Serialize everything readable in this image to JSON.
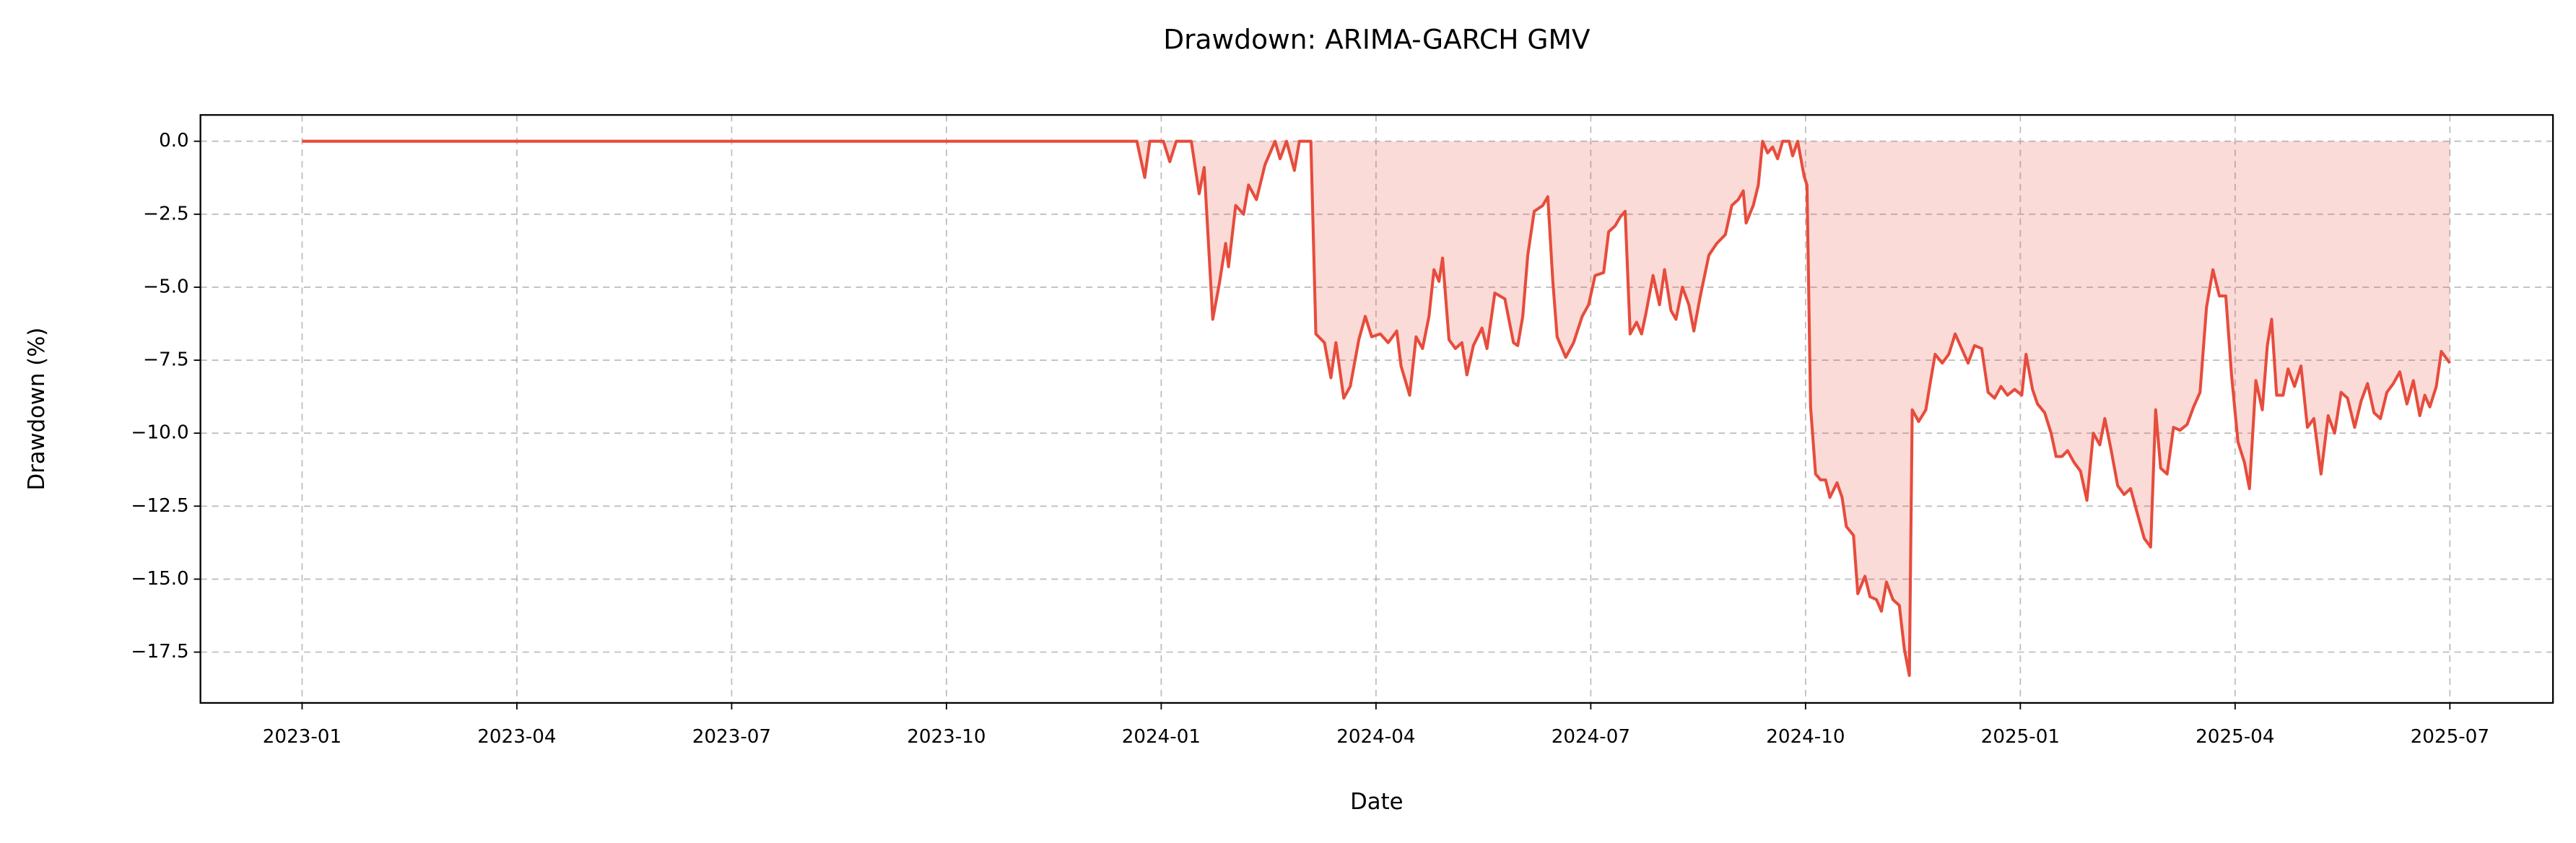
{
  "chart_data": {
    "type": "area",
    "title": "Drawdown: ARIMA-GARCH GMV",
    "x_label": "Date",
    "y_label": "Drawdown (%)",
    "color": "#e74c3c",
    "fill_opacity": 0.2,
    "grid": true,
    "xlim": [
      -1.42,
      31.44
    ],
    "ylim": [
      -19.24,
      0.9
    ],
    "xticks": [
      {
        "value": 0,
        "label": "2023-01"
      },
      {
        "value": 3,
        "label": "2023-04"
      },
      {
        "value": 6,
        "label": "2023-07"
      },
      {
        "value": 9,
        "label": "2023-10"
      },
      {
        "value": 12,
        "label": "2024-01"
      },
      {
        "value": 15,
        "label": "2024-04"
      },
      {
        "value": 18,
        "label": "2024-07"
      },
      {
        "value": 21,
        "label": "2024-10"
      },
      {
        "value": 24,
        "label": "2025-01"
      },
      {
        "value": 27,
        "label": "2025-04"
      },
      {
        "value": 30,
        "label": "2025-07"
      }
    ],
    "yticks": [
      {
        "value": 0,
        "label": "0.0"
      },
      {
        "value": -2.5,
        "label": "−2.5"
      },
      {
        "value": -5,
        "label": "−5.0"
      },
      {
        "value": -7.5,
        "label": "−7.5"
      },
      {
        "value": -10,
        "label": "−10.0"
      },
      {
        "value": -12.5,
        "label": "−12.5"
      },
      {
        "value": -15,
        "label": "−15.0"
      },
      {
        "value": -17.5,
        "label": "−17.5"
      }
    ],
    "x": [
      0,
      11.66,
      11.77,
      11.84,
      12.03,
      12.12,
      12.21,
      12.42,
      12.53,
      12.6,
      12.72,
      12.81,
      12.9,
      12.94,
      13.04,
      13.15,
      13.22,
      13.33,
      13.45,
      13.59,
      13.66,
      13.75,
      13.86,
      13.93,
      14.09,
      14.16,
      14.28,
      14.37,
      14.44,
      14.55,
      14.64,
      14.76,
      14.85,
      14.94,
      15.06,
      15.17,
      15.29,
      15.35,
      15.47,
      15.56,
      15.65,
      15.74,
      15.81,
      15.88,
      15.93,
      16.02,
      16.11,
      16.2,
      16.27,
      16.36,
      16.48,
      16.55,
      16.66,
      16.8,
      16.92,
      16.98,
      17.05,
      17.12,
      17.21,
      17.33,
      17.4,
      17.47,
      17.53,
      17.65,
      17.76,
      17.88,
      17.97,
      18.06,
      18.18,
      18.25,
      18.34,
      18.41,
      18.48,
      18.55,
      18.64,
      18.71,
      18.77,
      18.87,
      18.96,
      19.03,
      19.12,
      19.19,
      19.28,
      19.37,
      19.44,
      19.53,
      19.65,
      19.76,
      19.88,
      19.97,
      20.06,
      20.13,
      20.17,
      20.27,
      20.34,
      20.4,
      20.47,
      20.54,
      20.61,
      20.68,
      20.77,
      20.82,
      20.89,
      20.98,
      21.02,
      21.07,
      21.14,
      21.21,
      21.28,
      21.34,
      21.44,
      21.51,
      21.57,
      21.67,
      21.73,
      21.83,
      21.9,
      21.99,
      22.06,
      22.13,
      22.22,
      22.31,
      22.38,
      22.45,
      22.49,
      22.58,
      22.68,
      22.74,
      22.81,
      22.91,
      23.0,
      23.09,
      23.18,
      23.27,
      23.36,
      23.46,
      23.55,
      23.64,
      23.73,
      23.82,
      23.92,
      24.02,
      24.08,
      24.17,
      24.24,
      24.34,
      24.43,
      24.5,
      24.58,
      24.66,
      24.75,
      24.84,
      24.93,
      25.02,
      25.11,
      25.18,
      25.27,
      25.36,
      25.45,
      25.54,
      25.64,
      25.73,
      25.82,
      25.89,
      25.96,
      26.05,
      26.14,
      26.23,
      26.33,
      26.42,
      26.51,
      26.6,
      26.69,
      26.78,
      26.87,
      26.95,
      27.04,
      27.13,
      27.2,
      27.29,
      27.38,
      27.45,
      27.51,
      27.58,
      27.67,
      27.74,
      27.83,
      27.92,
      28.01,
      28.1,
      28.2,
      28.3,
      28.39,
      28.48,
      28.57,
      28.67,
      28.76,
      28.85,
      28.94,
      29.03,
      29.12,
      29.21,
      29.3,
      29.4,
      29.49,
      29.58,
      29.65,
      29.72,
      29.81,
      29.88,
      30.0
    ],
    "values": [
      0,
      0,
      -1.24,
      0,
      0,
      -0.7,
      0,
      0,
      -1.8,
      -0.9,
      -6.1,
      -4.9,
      -3.5,
      -4.3,
      -2.2,
      -2.5,
      -1.5,
      -2.0,
      -0.8,
      0,
      -0.6,
      0,
      -1.0,
      0,
      0,
      -6.6,
      -6.9,
      -8.1,
      -6.9,
      -8.8,
      -8.4,
      -6.8,
      -6.0,
      -6.7,
      -6.6,
      -6.9,
      -6.5,
      -7.7,
      -8.7,
      -6.7,
      -7.1,
      -6.0,
      -4.4,
      -4.8,
      -4.0,
      -6.8,
      -7.1,
      -6.9,
      -8.0,
      -7.0,
      -6.4,
      -7.1,
      -5.2,
      -5.4,
      -6.9,
      -7.0,
      -6.0,
      -3.9,
      -2.4,
      -2.2,
      -1.9,
      -4.8,
      -6.7,
      -7.4,
      -6.9,
      -6.0,
      -5.6,
      -4.6,
      -4.5,
      -3.1,
      -2.9,
      -2.6,
      -2.4,
      -6.6,
      -6.2,
      -6.6,
      -5.9,
      -4.6,
      -5.6,
      -4.4,
      -5.8,
      -6.1,
      -5.0,
      -5.6,
      -6.5,
      -5.3,
      -3.9,
      -3.5,
      -3.2,
      -2.2,
      -2.0,
      -1.7,
      -2.8,
      -2.2,
      -1.5,
      0,
      -0.4,
      -0.2,
      -0.6,
      0,
      0,
      -0.5,
      0,
      -1.2,
      -1.5,
      -9.1,
      -11.4,
      -11.6,
      -11.6,
      -12.2,
      -11.7,
      -12.2,
      -13.2,
      -13.5,
      -15.5,
      -14.9,
      -15.6,
      -15.7,
      -16.1,
      -15.1,
      -15.7,
      -15.9,
      -17.4,
      -18.3,
      -9.2,
      -9.6,
      -9.2,
      -8.3,
      -7.3,
      -7.6,
      -7.3,
      -6.6,
      -7.1,
      -7.6,
      -7.0,
      -7.1,
      -8.6,
      -8.8,
      -8.4,
      -8.7,
      -8.5,
      -8.7,
      -7.3,
      -8.5,
      -9.0,
      -9.3,
      -10.0,
      -10.8,
      -10.8,
      -10.6,
      -11.0,
      -11.3,
      -12.3,
      -10.0,
      -10.4,
      -9.5,
      -10.6,
      -11.8,
      -12.1,
      -11.9,
      -12.8,
      -13.6,
      -13.9,
      -9.2,
      -11.2,
      -11.4,
      -9.8,
      -9.9,
      -9.7,
      -9.1,
      -8.6,
      -5.7,
      -4.4,
      -5.3,
      -5.3,
      -8.0,
      -10.3,
      -11.0,
      -11.9,
      -8.2,
      -9.2,
      -7.0,
      -6.1,
      -8.7,
      -8.7,
      -7.8,
      -8.4,
      -7.7,
      -9.8,
      -9.5,
      -11.4,
      -9.4,
      -10.0,
      -8.6,
      -8.8,
      -9.8,
      -8.9,
      -8.3,
      -9.3,
      -9.5,
      -8.6,
      -8.3,
      -7.9,
      -9.0,
      -8.2,
      -9.4,
      -8.7,
      -9.1,
      -8.4,
      -7.2,
      -7.6
    ]
  }
}
